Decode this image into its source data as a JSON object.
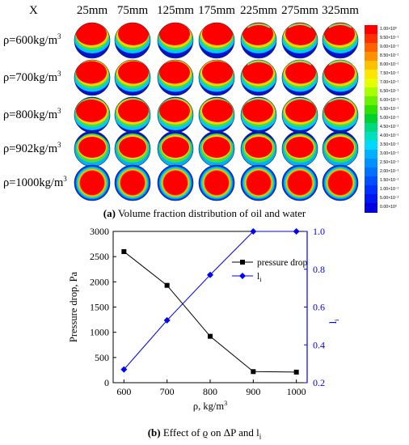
{
  "panel_a": {
    "x_label": "X",
    "positions": [
      "25mm",
      "75mm",
      "125mm",
      "175mm",
      "225mm",
      "275mm",
      "325mm"
    ],
    "densities": [
      "ρ=600kg/m",
      "ρ=700kg/m",
      "ρ=800kg/m",
      "ρ=902kg/m",
      "ρ=1000kg/m"
    ],
    "density_superscript": "3",
    "colorbar_labels": [
      "1.00×10⁰",
      "9.50×10⁻¹",
      "9.00×10⁻¹",
      "8.50×10⁻¹",
      "8.00×10⁻¹",
      "7.50×10⁻¹",
      "7.00×10⁻¹",
      "6.50×10⁻¹",
      "6.00×10⁻¹",
      "5.50×10⁻¹",
      "5.00×10⁻¹",
      "4.50×10⁻¹",
      "4.00×10⁻¹",
      "3.50×10⁻¹",
      "3.00×10⁻¹",
      "2.50×10⁻¹",
      "2.00×10⁻¹",
      "1.50×10⁻¹",
      "1.00×10⁻¹",
      "5.00×10⁻²",
      "0.00×10⁰"
    ],
    "colorbar_colors": [
      "#ff0000",
      "#ff3000",
      "#ff6000",
      "#ff9000",
      "#ffc000",
      "#ffe600",
      "#e6ff00",
      "#a8ff00",
      "#6af000",
      "#30e000",
      "#00d030",
      "#00d880",
      "#00e0c0",
      "#00d8ff",
      "#00b0ff",
      "#0090ff",
      "#0070ff",
      "#0050ff",
      "#0030ff",
      "#0018f0",
      "#0000e0"
    ],
    "caption_bold": "(a)",
    "caption_text": " Volume fraction distribution of oil and water"
  },
  "panel_b": {
    "caption_bold": "(b)",
    "caption_text": " Effect of ϱ on ΔP and l",
    "caption_sub": "i"
  },
  "chart_data": {
    "type": "line",
    "x": [
      600,
      700,
      800,
      900,
      1000
    ],
    "xlabel": "ρ, kg/m",
    "xlabel_superscript": "3",
    "xlim": [
      575,
      1025
    ],
    "xticks": [
      600,
      700,
      800,
      900,
      1000
    ],
    "ylabel": "Pressure drop, Pa",
    "ylim": [
      0,
      3000
    ],
    "yticks": [
      0,
      500,
      1000,
      1500,
      2000,
      2500,
      3000
    ],
    "y2label": "l",
    "y2label_sub": "i",
    "y2lim": [
      0.2,
      1.0
    ],
    "y2ticks": [
      "0.2",
      "0.4",
      "0.6",
      "0.8",
      "1.0"
    ],
    "grid": false,
    "legend_position": "top-right",
    "series": [
      {
        "name": "pressure drop",
        "axis": "left",
        "marker": "square",
        "color": "#000000",
        "values": [
          2600,
          1930,
          920,
          220,
          210
        ]
      },
      {
        "name": "l",
        "name_sub": "i",
        "axis": "right",
        "marker": "diamond",
        "color": "#0000ff",
        "values": [
          0.27,
          0.53,
          0.77,
          1.0,
          1.0
        ]
      }
    ]
  }
}
